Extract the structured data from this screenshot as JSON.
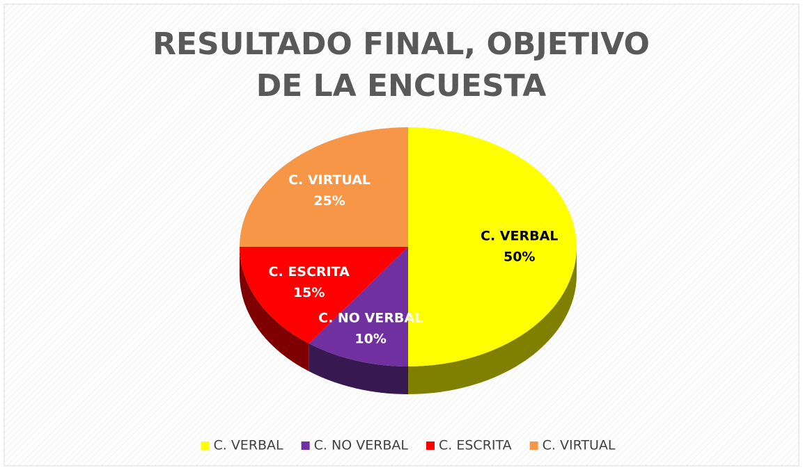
{
  "chart_data": {
    "type": "pie",
    "title": "RESULTADO FINAL, OBJETIVO DE LA ENCUESTA",
    "categories": [
      "C. VERBAL",
      "C. NO VERBAL",
      "C. ESCRITA",
      "C. VIRTUAL"
    ],
    "values": [
      50,
      10,
      15,
      25
    ],
    "value_labels": [
      "50%",
      "10%",
      "15%",
      "25%"
    ],
    "colors": [
      "#ffff00",
      "#7030a0",
      "#ff0000",
      "#f79646"
    ],
    "label_colors": [
      "#000000",
      "#ffffff",
      "#ffffff",
      "#ffffff"
    ],
    "legend": "bottom"
  }
}
